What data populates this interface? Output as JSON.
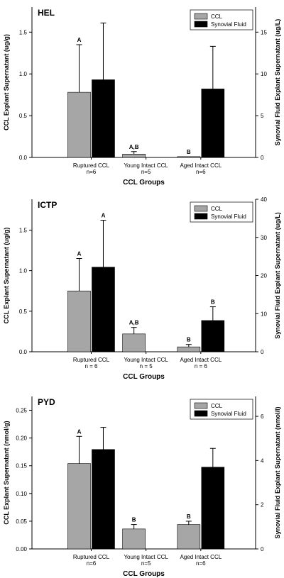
{
  "colors": {
    "ccl": "#a6a6a6",
    "synovial": "#000000",
    "background": "#ffffff"
  },
  "chart_data": [
    {
      "type": "bar",
      "title": "HEL",
      "xlabel": "CCL Groups",
      "ylabel": "CCL Explant Supernatant (ug/g)",
      "ylabel_right": "Synovial Fluid Explant Supernatant (ug/L)",
      "categories": [
        {
          "name": "Ruptured CCL",
          "n": "n=6"
        },
        {
          "name": "Young Intact CCL",
          "n": "n=5"
        },
        {
          "name": "Aged Intact CCL",
          "n": "n=6"
        }
      ],
      "ylim": [
        0,
        1.8
      ],
      "yticks": [
        "0.0",
        "0.5",
        "1.0",
        "1.5"
      ],
      "ylim_right": [
        0,
        18
      ],
      "yticks_right": [
        "0",
        "5",
        "10",
        "15"
      ],
      "legend_position": "top-right",
      "series": [
        {
          "name": "CCL",
          "axis": "left",
          "values": [
            0.78,
            0.04,
            0.01
          ],
          "errors": [
            0.57,
            0.03,
            0.0
          ],
          "labels": [
            "A",
            "A,B",
            "B"
          ]
        },
        {
          "name": "Synovial Fluid",
          "axis": "right",
          "values": [
            9.3,
            null,
            8.2
          ],
          "errors": [
            6.8,
            null,
            5.1
          ],
          "labels": [
            "",
            "",
            ""
          ]
        }
      ]
    },
    {
      "type": "bar",
      "title": "ICTP",
      "xlabel": "CCL Groups",
      "ylabel": "CCL Explant Supernatant (ug/g)",
      "ylabel_right": "Synovial Fluid Explant Supernatant (ug/L)",
      "categories": [
        {
          "name": "Ruptured CCL",
          "n": "n = 6"
        },
        {
          "name": "Young Intact CCL",
          "n": "n = 5"
        },
        {
          "name": "Aged Intact CCL",
          "n": "n = 6"
        }
      ],
      "ylim": [
        0,
        1.88
      ],
      "yticks": [
        "0.0",
        "0.5",
        "1.0",
        "1.5"
      ],
      "ylim_right": [
        0,
        40
      ],
      "yticks_right": [
        "0",
        "10",
        "20",
        "30",
        "40"
      ],
      "legend_position": "top-right",
      "series": [
        {
          "name": "CCL",
          "axis": "left",
          "values": [
            0.75,
            0.22,
            0.06
          ],
          "errors": [
            0.4,
            0.08,
            0.03
          ],
          "labels": [
            "A",
            "A,B",
            "B"
          ]
        },
        {
          "name": "Synovial Fluid",
          "axis": "right",
          "values": [
            22.2,
            null,
            8.2
          ],
          "errors": [
            12.3,
            null,
            3.6
          ],
          "labels": [
            "A",
            "",
            "B"
          ]
        }
      ]
    },
    {
      "type": "bar",
      "title": "PYD",
      "xlabel": "CCL Groups",
      "ylabel": "CCL Explant Supernatant (nmol/g)",
      "ylabel_right": "Synovial Fluid Explant Supernatant (nmol/l)",
      "categories": [
        {
          "name": "Ruptured CCL",
          "n": "n=6"
        },
        {
          "name": "Young Intact CCL",
          "n": "n=5"
        },
        {
          "name": "Aged Intact CCL",
          "n": "n=6"
        }
      ],
      "ylim": [
        0,
        0.275
      ],
      "yticks": [
        "0.00",
        "0.05",
        "0.10",
        "0.15",
        "0.20",
        "0.25"
      ],
      "ylim_right": [
        0,
        6.9
      ],
      "yticks_right": [
        "0",
        "2",
        "4",
        "6"
      ],
      "legend_position": "top-right",
      "series": [
        {
          "name": "CCL",
          "axis": "left",
          "values": [
            0.154,
            0.036,
            0.044
          ],
          "errors": [
            0.049,
            0.008,
            0.006
          ],
          "labels": [
            "A",
            "B",
            "B"
          ]
        },
        {
          "name": "Synovial Fluid",
          "axis": "right",
          "values": [
            4.5,
            null,
            3.7
          ],
          "errors": [
            1.0,
            null,
            0.85
          ],
          "labels": [
            "",
            "",
            ""
          ]
        }
      ]
    }
  ]
}
